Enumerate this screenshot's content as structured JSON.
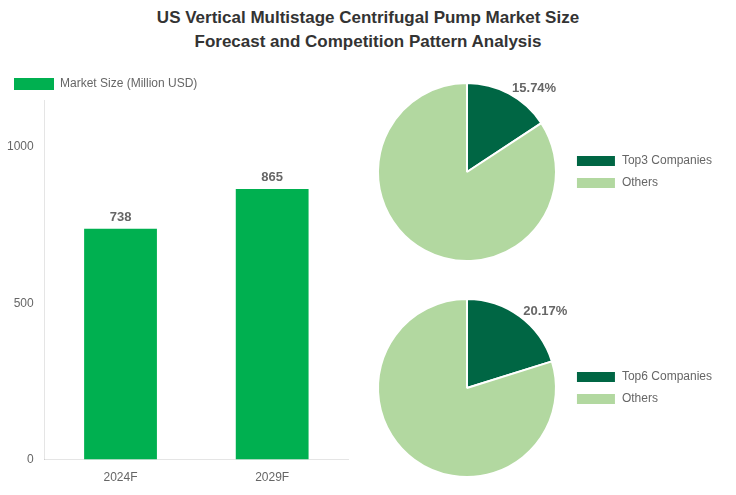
{
  "title": [
    "US Vertical Multistage Centrifugal Pump Market Size",
    "Forecast and Competition Pattern Analysis"
  ],
  "chart_data": [
    {
      "type": "bar",
      "categories": [
        "2024F",
        "2029F"
      ],
      "series": [
        {
          "name": "Market Size (Million USD)",
          "color": "#00b050",
          "values": [
            738,
            865
          ]
        }
      ],
      "ylim": [
        0,
        1150
      ],
      "yticks": [
        0,
        500,
        1000
      ],
      "grid": false,
      "legend": "upper left",
      "data_labels": true
    },
    {
      "type": "pie",
      "categories": [
        "Top3 Companies",
        "Others"
      ],
      "values": [
        15.74,
        84.26
      ],
      "value_labels": [
        "15.74%",
        null
      ],
      "colors": [
        "#006644",
        "#b2d8a0"
      ],
      "legend": "right",
      "data_labels": true
    },
    {
      "type": "pie",
      "categories": [
        "Top6 Companies",
        "Others"
      ],
      "values": [
        20.17,
        79.83
      ],
      "value_labels": [
        "20.17%",
        null
      ],
      "colors": [
        "#006644",
        "#b2d8a0"
      ],
      "legend": "right",
      "data_labels": true
    }
  ]
}
